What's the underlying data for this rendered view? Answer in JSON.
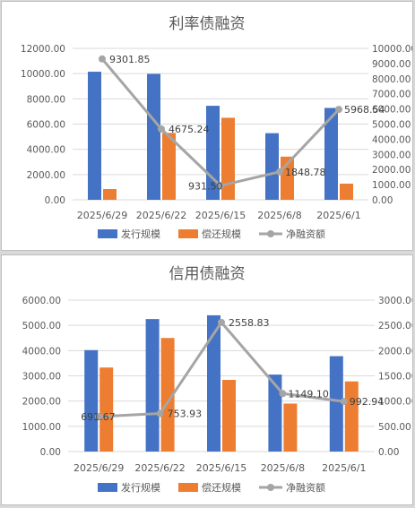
{
  "colors": {
    "issuance": "#4472c4",
    "repayment": "#ed7d31",
    "net_financing": "#a5a5a5",
    "gridline": "#d9d9d9",
    "text": "#595959"
  },
  "chart_data": [
    {
      "type": "bar",
      "title": "利率债融资",
      "categories": [
        "2025/6/29",
        "2025/6/22",
        "2025/6/15",
        "2025/6/8",
        "2025/6/1"
      ],
      "series": [
        {
          "name": "发行规模",
          "axis": "left",
          "values": [
            10150,
            9980,
            7450,
            5280,
            7280
          ]
        },
        {
          "name": "偿还规模",
          "axis": "left",
          "values": [
            850,
            5300,
            6500,
            3420,
            1280
          ]
        },
        {
          "name": "净融资额",
          "type": "line",
          "axis": "right",
          "values": [
            9301.85,
            4675.24,
            931.5,
            1848.78,
            5968.54
          ]
        }
      ],
      "data_labels": [
        "9301.85",
        "4675.24",
        "931.50",
        "1848.78",
        "5968.54"
      ],
      "y_left": {
        "range": [
          0,
          12000
        ],
        "ticks": [
          "0.00",
          "2000.00",
          "4000.00",
          "6000.00",
          "8000.00",
          "10000.00",
          "12000.00"
        ]
      },
      "y_right": {
        "range": [
          0,
          10000
        ],
        "ticks": [
          "0.00",
          "1000.00",
          "2000.00",
          "3000.00",
          "4000.00",
          "5000.00",
          "6000.00",
          "7000.00",
          "8000.00",
          "9000.00",
          "10000.00"
        ]
      },
      "grid": true,
      "legend_position": "bottom"
    },
    {
      "type": "bar",
      "title": "信用债融资",
      "categories": [
        "2025/6/29",
        "2025/6/22",
        "2025/6/15",
        "2025/6/8",
        "2025/6/1"
      ],
      "series": [
        {
          "name": "发行规模",
          "axis": "left",
          "values": [
            4020,
            5250,
            5400,
            3050,
            3780
          ]
        },
        {
          "name": "偿还规模",
          "axis": "left",
          "values": [
            3330,
            4500,
            2840,
            1900,
            2780
          ]
        },
        {
          "name": "净融资额",
          "type": "line",
          "axis": "right",
          "values": [
            691.67,
            753.93,
            2558.83,
            1149.1,
            992.94
          ]
        }
      ],
      "data_labels": [
        "691.67",
        "753.93",
        "2558.83",
        "1149.10",
        "992.94"
      ],
      "y_left": {
        "range": [
          0,
          6000
        ],
        "ticks": [
          "0.00",
          "1000.00",
          "2000.00",
          "3000.00",
          "4000.00",
          "5000.00",
          "6000.00"
        ]
      },
      "y_right": {
        "range": [
          0,
          3000
        ],
        "ticks": [
          "0.00",
          "500.00",
          "1000.00",
          "1500.00",
          "2000.00",
          "2500.00",
          "3000.00"
        ]
      },
      "grid": true,
      "legend_position": "bottom"
    }
  ]
}
